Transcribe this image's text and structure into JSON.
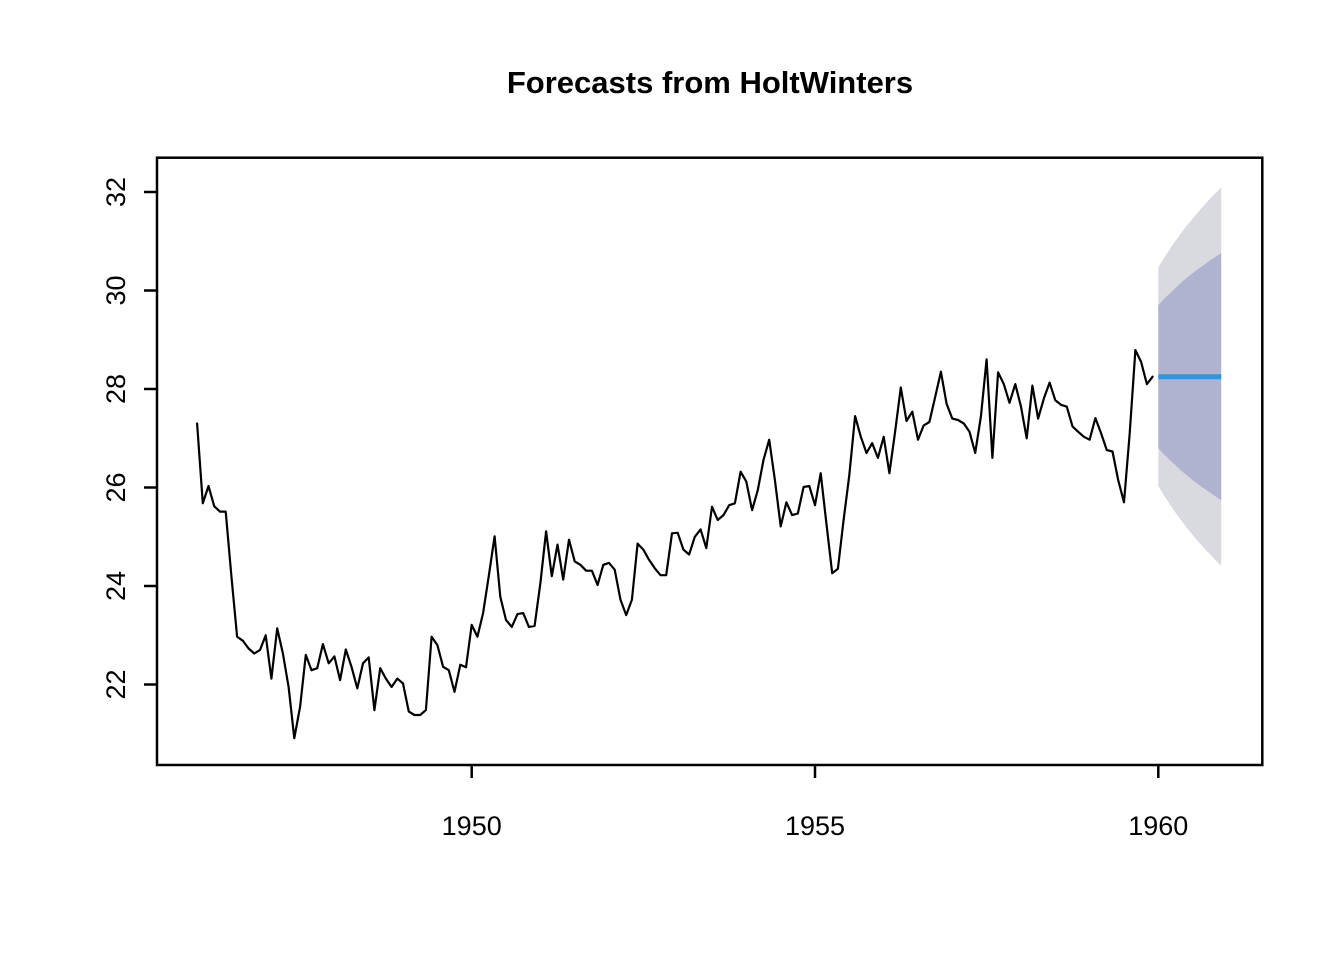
{
  "chart_data": {
    "type": "line",
    "title": "Forecasts from HoltWinters",
    "xlabel": "",
    "ylabel": "",
    "x_ticks": [
      1950,
      1955,
      1960
    ],
    "y_ticks": [
      22,
      24,
      26,
      28,
      30,
      32
    ],
    "xlim": [
      1945.4,
      1961.5
    ],
    "ylim": [
      20.4,
      32.7
    ],
    "grid": false,
    "legend": "none",
    "colors": {
      "observed_line": "#000000",
      "forecast_line": "#2B97E2",
      "band_80": "#AFB3CF",
      "band_95": "#D9D9E0",
      "axis": "#000000"
    },
    "observed": {
      "start_year": 1946,
      "frequency": 12,
      "values": [
        27.3,
        25.68,
        26.03,
        25.62,
        25.51,
        25.51,
        24.2,
        22.97,
        22.89,
        22.73,
        22.63,
        22.7,
        23.0,
        22.12,
        23.14,
        22.63,
        21.95,
        20.91,
        21.55,
        22.6,
        22.29,
        22.33,
        22.82,
        22.43,
        22.57,
        22.09,
        22.71,
        22.36,
        21.92,
        22.43,
        22.55,
        21.48,
        22.33,
        22.12,
        21.95,
        22.12,
        22.02,
        21.45,
        21.38,
        21.38,
        21.48,
        22.97,
        22.8,
        22.36,
        22.29,
        21.85,
        22.4,
        22.35,
        23.21,
        22.97,
        23.45,
        24.22,
        25.01,
        23.78,
        23.31,
        23.17,
        23.43,
        23.45,
        23.17,
        23.19,
        24.06,
        25.11,
        24.2,
        24.84,
        24.13,
        24.94,
        24.5,
        24.43,
        24.31,
        24.31,
        24.02,
        24.43,
        24.47,
        24.33,
        23.72,
        23.41,
        23.72,
        24.86,
        24.74,
        24.53,
        24.36,
        24.22,
        24.22,
        25.07,
        25.08,
        24.74,
        24.64,
        25.0,
        25.15,
        24.77,
        25.61,
        25.34,
        25.44,
        25.64,
        25.68,
        26.32,
        26.12,
        25.54,
        25.95,
        26.56,
        26.97,
        26.15,
        25.21,
        25.7,
        25.44,
        25.47,
        26.01,
        26.03,
        25.64,
        26.29,
        25.27,
        24.26,
        24.35,
        25.34,
        26.25,
        27.45,
        27.03,
        26.7,
        26.9,
        26.6,
        27.03,
        26.29,
        27.13,
        28.03,
        27.35,
        27.54,
        26.97,
        27.26,
        27.33,
        27.84,
        28.35,
        27.7,
        27.4,
        27.37,
        27.3,
        27.13,
        26.7,
        27.44,
        28.6,
        26.6,
        28.34,
        28.1,
        27.72,
        28.1,
        27.64,
        27.0,
        28.07,
        27.4,
        27.81,
        28.13,
        27.77,
        27.68,
        27.64,
        27.24,
        27.13,
        27.03,
        26.97,
        27.41,
        27.1,
        26.76,
        26.73,
        26.15,
        25.7,
        27.1,
        28.79,
        28.55,
        28.1,
        28.25
      ]
    },
    "forecast": {
      "start_year": 1960,
      "frequency": 12,
      "mean": [
        28.25,
        28.25,
        28.25,
        28.25,
        28.25,
        28.25,
        28.25,
        28.25,
        28.25,
        28.25,
        28.25,
        28.25
      ],
      "lo80": [
        26.8,
        26.67,
        26.56,
        26.45,
        26.34,
        26.25,
        26.15,
        26.06,
        25.98,
        25.9,
        25.82,
        25.74
      ],
      "hi80": [
        29.7,
        29.83,
        29.94,
        30.05,
        30.16,
        30.26,
        30.35,
        30.44,
        30.52,
        30.61,
        30.68,
        30.76
      ],
      "lo95": [
        26.03,
        25.84,
        25.66,
        25.49,
        25.33,
        25.18,
        25.04,
        24.9,
        24.77,
        24.65,
        24.52,
        24.41
      ],
      "hi95": [
        30.47,
        30.66,
        30.84,
        31.01,
        31.17,
        31.32,
        31.46,
        31.6,
        31.73,
        31.86,
        31.98,
        32.09
      ]
    }
  }
}
